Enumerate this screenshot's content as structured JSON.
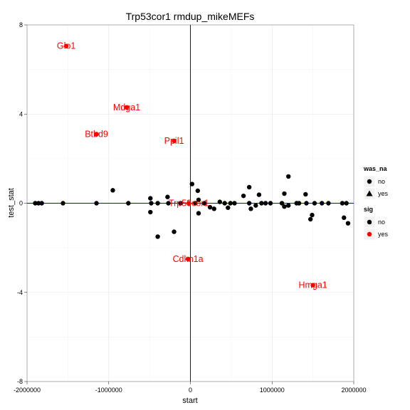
{
  "chart_data": {
    "type": "scatter",
    "title": "Trp53cor1 rmdup_mikeMEFs",
    "xlabel": "start",
    "ylabel": "test_stat",
    "xlim": [
      -2000000,
      2000000
    ],
    "ylim": [
      -8,
      8
    ],
    "x_ticks": [
      {
        "value": -2000000,
        "label": "-2000000"
      },
      {
        "value": -1000000,
        "label": "-1000000"
      },
      {
        "value": 0,
        "label": "0"
      },
      {
        "value": 1000000,
        "label": "1000000"
      },
      {
        "value": 2000000,
        "label": "2000000"
      }
    ],
    "y_ticks": [
      {
        "value": -8,
        "label": "-8"
      },
      {
        "value": -4,
        "label": "-4"
      },
      {
        "value": 0,
        "label": "0"
      },
      {
        "value": 4,
        "label": "4"
      },
      {
        "value": 8,
        "label": "8"
      }
    ],
    "reference_lines": [
      {
        "orientation": "vertical",
        "value": 0
      },
      {
        "orientation": "horizontal",
        "value": 0
      }
    ],
    "grid": true,
    "legend_position": "right",
    "legends": [
      {
        "title": "was_na",
        "entries": [
          {
            "label": "no",
            "shape": "circle"
          },
          {
            "label": "yes",
            "shape": "triangle"
          }
        ]
      },
      {
        "title": "sig",
        "entries": [
          {
            "label": "no",
            "color": "#000000"
          },
          {
            "label": "yes",
            "color": "#ff0000"
          }
        ]
      }
    ],
    "series": [
      {
        "sig": "no",
        "was_na": "no",
        "color": "#000000",
        "points": [
          [
            -1900000,
            0.0
          ],
          [
            -1860000,
            0.0
          ],
          [
            -1820000,
            0.0
          ],
          [
            -1560000,
            0.0
          ],
          [
            -1150000,
            0.0
          ],
          [
            -950000,
            0.58
          ],
          [
            -760000,
            0.0
          ],
          [
            -490000,
            0.22
          ],
          [
            -490000,
            -0.4
          ],
          [
            -480000,
            0.0
          ],
          [
            -400000,
            0.0
          ],
          [
            -400000,
            -1.5
          ],
          [
            -280000,
            0.28
          ],
          [
            -270000,
            0.0
          ],
          [
            -200000,
            -1.28
          ],
          [
            -120000,
            0.0
          ],
          [
            20000,
            0.86
          ],
          [
            60000,
            0.0
          ],
          [
            90000,
            0.56
          ],
          [
            100000,
            0.15
          ],
          [
            100000,
            -0.45
          ],
          [
            170000,
            0.0
          ],
          [
            240000,
            -0.18
          ],
          [
            290000,
            -0.25
          ],
          [
            360000,
            0.06
          ],
          [
            420000,
            0.0
          ],
          [
            460000,
            -0.2
          ],
          [
            490000,
            0.0
          ],
          [
            540000,
            0.0
          ],
          [
            650000,
            0.33
          ],
          [
            720000,
            0.0
          ],
          [
            720000,
            0.72
          ],
          [
            740000,
            -0.25
          ],
          [
            800000,
            -0.1
          ],
          [
            840000,
            0.38
          ],
          [
            870000,
            0.0
          ],
          [
            920000,
            0.0
          ],
          [
            980000,
            0.0
          ],
          [
            1120000,
            0.0
          ],
          [
            1150000,
            0.43
          ],
          [
            1150000,
            -0.15
          ],
          [
            1200000,
            1.2
          ],
          [
            1200000,
            -0.1
          ],
          [
            1300000,
            0.0
          ],
          [
            1330000,
            0.0
          ],
          [
            1410000,
            0.4
          ],
          [
            1420000,
            0.0
          ],
          [
            1470000,
            -0.72
          ],
          [
            1490000,
            -0.53
          ],
          [
            1520000,
            0.0
          ],
          [
            1610000,
            0.0
          ],
          [
            1690000,
            0.0
          ],
          [
            1860000,
            0.0
          ],
          [
            1880000,
            -0.65
          ],
          [
            1910000,
            0.0
          ],
          [
            1930000,
            -0.9
          ]
        ]
      },
      {
        "sig": "yes",
        "was_na": "no",
        "color": "#ff0000",
        "points": [
          [
            -1520000,
            7.05,
            "Glo1"
          ],
          [
            -780000,
            4.3,
            "Mdga1"
          ],
          [
            -1150000,
            3.1,
            "Btbd9"
          ],
          [
            -200000,
            2.8,
            "Ppil1"
          ],
          [
            -20000,
            0.0,
            "Trp53cor1"
          ],
          [
            -30000,
            -2.5,
            "Cdkn1a"
          ],
          [
            1500000,
            -3.68,
            "Hmga1"
          ]
        ]
      }
    ]
  }
}
